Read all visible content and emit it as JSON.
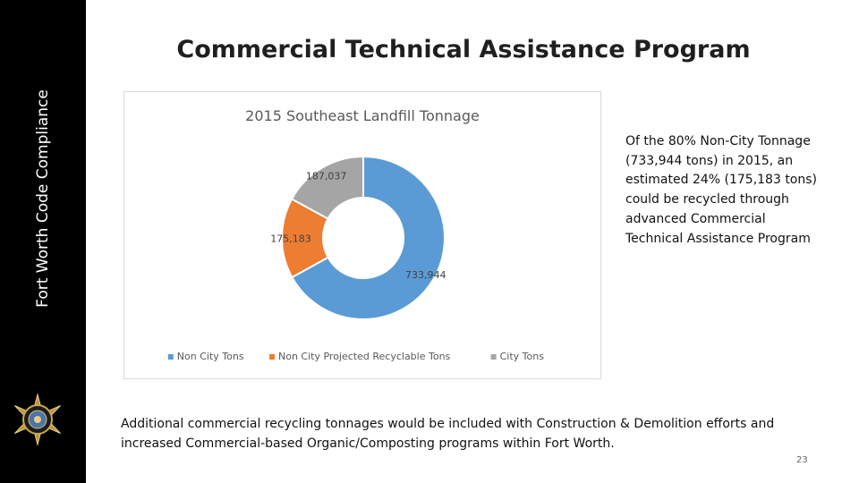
{
  "sidebar": {
    "label": "Fort Worth Code Compliance",
    "badge_icon": "sheriff-star-badge"
  },
  "slide": {
    "title": "Commercial Technical Assistance Program",
    "side_note": "Of the 80% Non-City Tonnage (733,944 tons) in 2015, an estimated 24% (175,183 tons) could be recycled through advanced Commercial Technical Assistance Program",
    "footer_note": "Additional commercial recycling tonnages would be included with Construction & Demolition efforts and increased Commercial-based Organic/Composting programs within Fort Worth.",
    "page_number": "23"
  },
  "chart_data": {
    "type": "pie",
    "donut": true,
    "title": "2015 Southeast Landfill Tonnage",
    "series": [
      {
        "name": "Non City Tons",
        "value": 733944,
        "label": "733,944",
        "color": "#5b9bd5"
      },
      {
        "name": "Non City Projected Recyclable Tons",
        "value": 175183,
        "label": "175,183",
        "color": "#ed7d31"
      },
      {
        "name": "City Tons",
        "value": 187037,
        "label": "187,037",
        "color": "#a5a5a5"
      }
    ],
    "legend_position": "bottom",
    "start_angle": "top",
    "direction": "clockwise"
  }
}
